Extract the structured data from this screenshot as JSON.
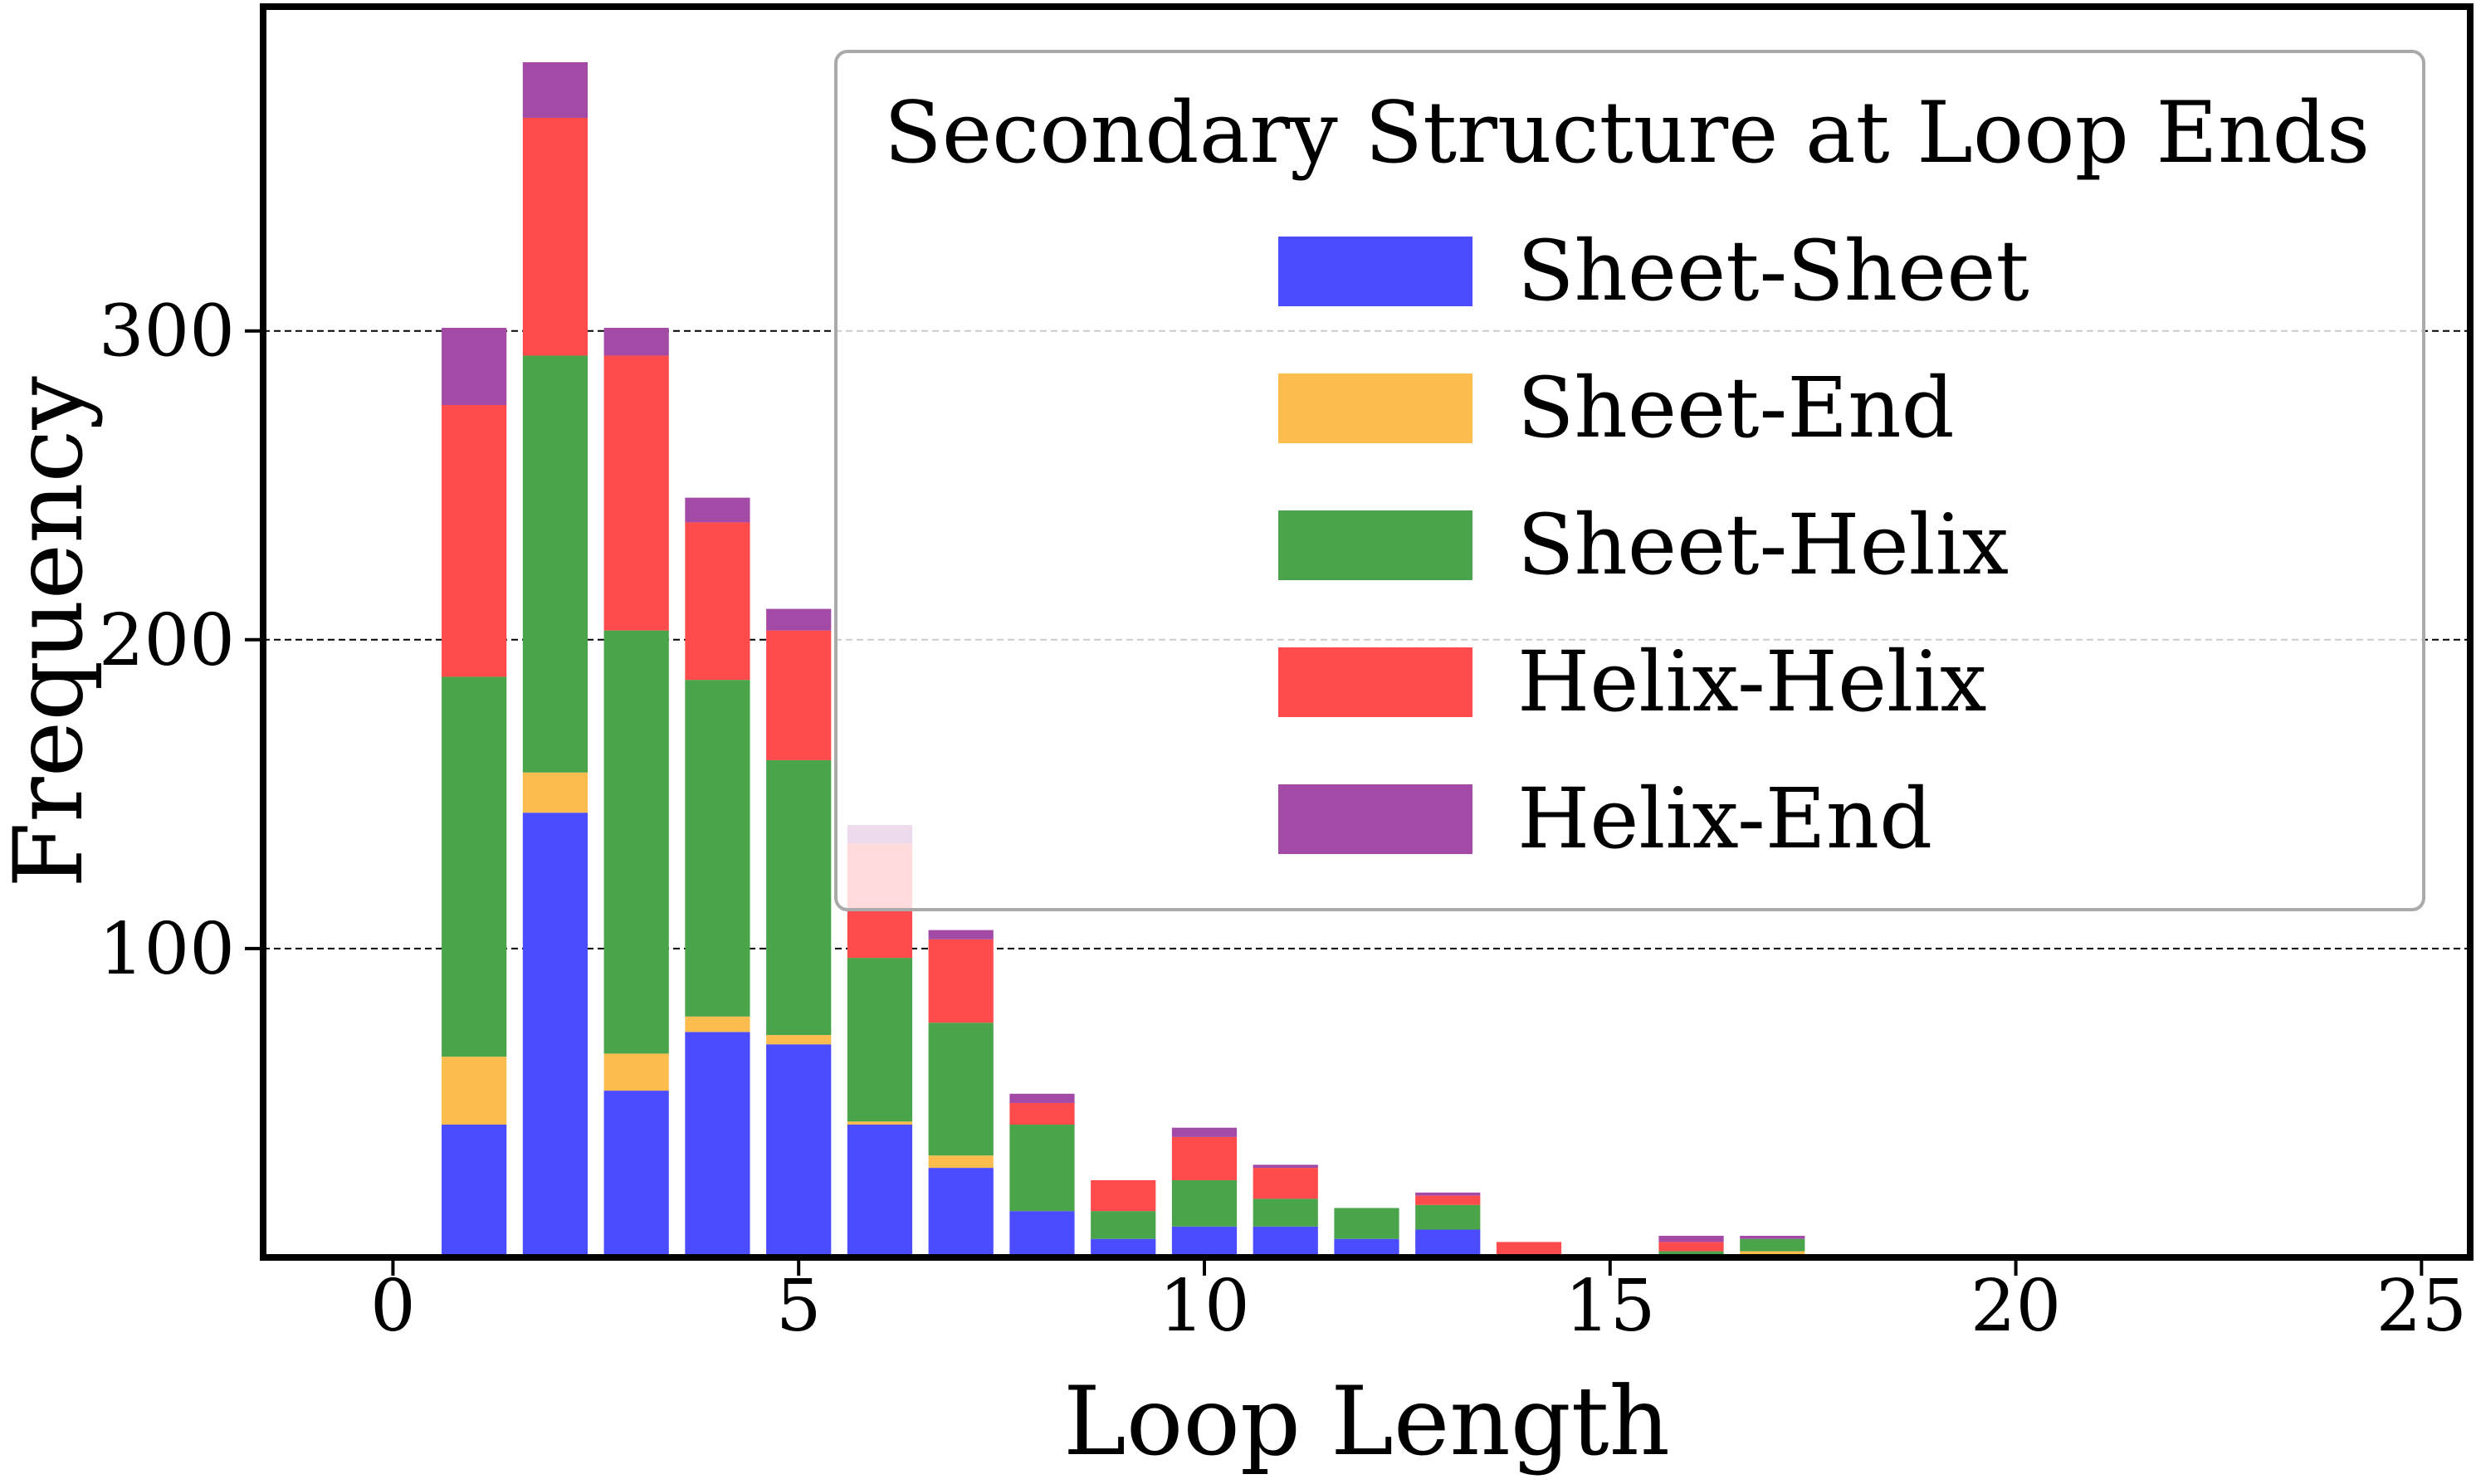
{
  "chart_data": {
    "type": "bar",
    "stacked": true,
    "xlabel": "Loop Length",
    "ylabel": "Frequency",
    "xlim": [
      -1.6,
      25.6
    ],
    "ylim": [
      0,
      405
    ],
    "xticks": [
      0,
      5,
      10,
      15,
      20,
      25
    ],
    "yticks": [
      100,
      200,
      300
    ],
    "grid": {
      "axis": "y",
      "style": "dashed"
    },
    "legend": {
      "title": "Secondary Structure at Loop Ends",
      "placement": "top-right"
    },
    "x": [
      1,
      2,
      3,
      4,
      5,
      6,
      7,
      8,
      9,
      10,
      11,
      12,
      13,
      14,
      15,
      16,
      17
    ],
    "series": [
      {
        "name": "Sheet-Sheet",
        "color": "#4b4bff",
        "values": [
          43,
          144,
          54,
          73,
          69,
          43,
          29,
          15,
          6,
          10,
          10,
          6,
          9,
          0,
          0,
          0,
          0
        ]
      },
      {
        "name": "Sheet-End",
        "color": "#fcbd4e",
        "values": [
          22,
          13,
          12,
          5,
          3,
          1,
          4,
          0,
          0,
          0,
          0,
          0,
          0,
          0,
          0,
          0,
          2
        ]
      },
      {
        "name": "Sheet-Helix",
        "color": "#4aa54a",
        "values": [
          123,
          135,
          137,
          109,
          89,
          53,
          43,
          28,
          9,
          15,
          9,
          10,
          8,
          0,
          0,
          2,
          4
        ]
      },
      {
        "name": "Helix-Helix",
        "color": "#ff4b4b",
        "values": [
          88,
          77,
          89,
          51,
          42,
          37,
          27,
          7,
          10,
          14,
          10,
          0,
          3,
          5,
          0,
          3,
          0
        ]
      },
      {
        "name": "Helix-End",
        "color": "#a34aa6",
        "values": [
          25,
          18,
          9,
          8,
          7,
          6,
          3,
          3,
          0,
          3,
          1,
          0,
          1,
          0,
          0,
          2,
          1
        ]
      }
    ]
  }
}
